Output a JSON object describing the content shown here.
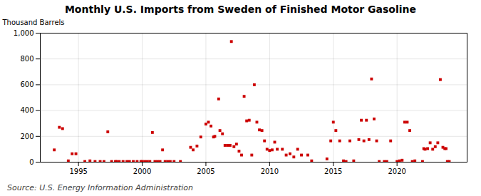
{
  "chart_data": {
    "type": "scatter",
    "title": "Monthly U.S. Imports from Sweden of Finished Motor Gasoline",
    "ylabel": "Thousand Barrels",
    "source": "Source: U.S. Energy Information Administration",
    "color": "#cc0000",
    "marker": "square",
    "grid": true,
    "xlim": [
      1992.0,
      2025.5
    ],
    "ylim": [
      0,
      1000
    ],
    "xticks": [
      1995,
      2000,
      2005,
      2010,
      2015,
      2020
    ],
    "yticks": [
      0,
      200,
      400,
      600,
      800,
      {
        "value": 1000,
        "label": "1,000"
      }
    ],
    "x": [
      1993.1,
      1993.5,
      1993.75,
      1994.2,
      1994.5,
      1994.8,
      1995.5,
      1995.9,
      1996.3,
      1996.7,
      1997.0,
      1997.3,
      1997.6,
      1997.9,
      1998.0,
      1998.2,
      1998.5,
      1998.8,
      1999.0,
      1999.3,
      1999.6,
      1999.9,
      2000.0,
      2000.2,
      2000.4,
      2000.6,
      2000.8,
      2001.0,
      2001.2,
      2001.4,
      2001.6,
      2001.8,
      2002.0,
      2002.2,
      2002.5,
      2003.0,
      2003.8,
      2004.0,
      2004.3,
      2004.6,
      2005.0,
      2005.2,
      2005.4,
      2005.6,
      2005.7,
      2006.0,
      2006.1,
      2006.3,
      2006.5,
      2006.7,
      2006.9,
      2007.0,
      2007.2,
      2007.4,
      2007.6,
      2007.8,
      2008.0,
      2008.2,
      2008.4,
      2008.6,
      2008.8,
      2009.0,
      2009.2,
      2009.4,
      2009.6,
      2009.8,
      2010.0,
      2010.2,
      2010.4,
      2010.6,
      2011.0,
      2011.3,
      2011.6,
      2011.9,
      2012.2,
      2012.5,
      2013.0,
      2013.3,
      2014.5,
      2014.8,
      2015.0,
      2015.2,
      2015.5,
      2015.8,
      2016.0,
      2016.3,
      2016.6,
      2017.0,
      2017.2,
      2017.4,
      2017.6,
      2017.8,
      2018.0,
      2018.2,
      2018.4,
      2018.6,
      2019.0,
      2019.2,
      2019.5,
      2020.0,
      2020.2,
      2020.4,
      2020.6,
      2020.8,
      2021.0,
      2021.2,
      2021.4,
      2022.0,
      2022.1,
      2022.2,
      2022.4,
      2022.6,
      2022.8,
      2023.0,
      2023.2,
      2023.4,
      2023.6,
      2023.75,
      2023.85,
      2023.95,
      2024.1
    ],
    "values": [
      95,
      270,
      260,
      10,
      65,
      65,
      5,
      10,
      5,
      5,
      5,
      235,
      5,
      5,
      5,
      5,
      5,
      5,
      5,
      5,
      5,
      5,
      5,
      5,
      5,
      5,
      230,
      5,
      5,
      5,
      95,
      5,
      5,
      5,
      5,
      5,
      115,
      95,
      125,
      195,
      295,
      310,
      280,
      195,
      200,
      490,
      245,
      220,
      130,
      130,
      130,
      935,
      120,
      140,
      85,
      55,
      510,
      320,
      325,
      55,
      600,
      310,
      250,
      245,
      165,
      100,
      90,
      95,
      155,
      100,
      100,
      55,
      65,
      40,
      100,
      55,
      55,
      10,
      25,
      165,
      310,
      245,
      165,
      10,
      5,
      165,
      10,
      175,
      325,
      165,
      325,
      175,
      645,
      335,
      165,
      5,
      5,
      5,
      165,
      5,
      10,
      15,
      310,
      310,
      245,
      5,
      10,
      5,
      105,
      100,
      105,
      150,
      100,
      120,
      150,
      640,
      115,
      105,
      105,
      5,
      5
    ]
  }
}
